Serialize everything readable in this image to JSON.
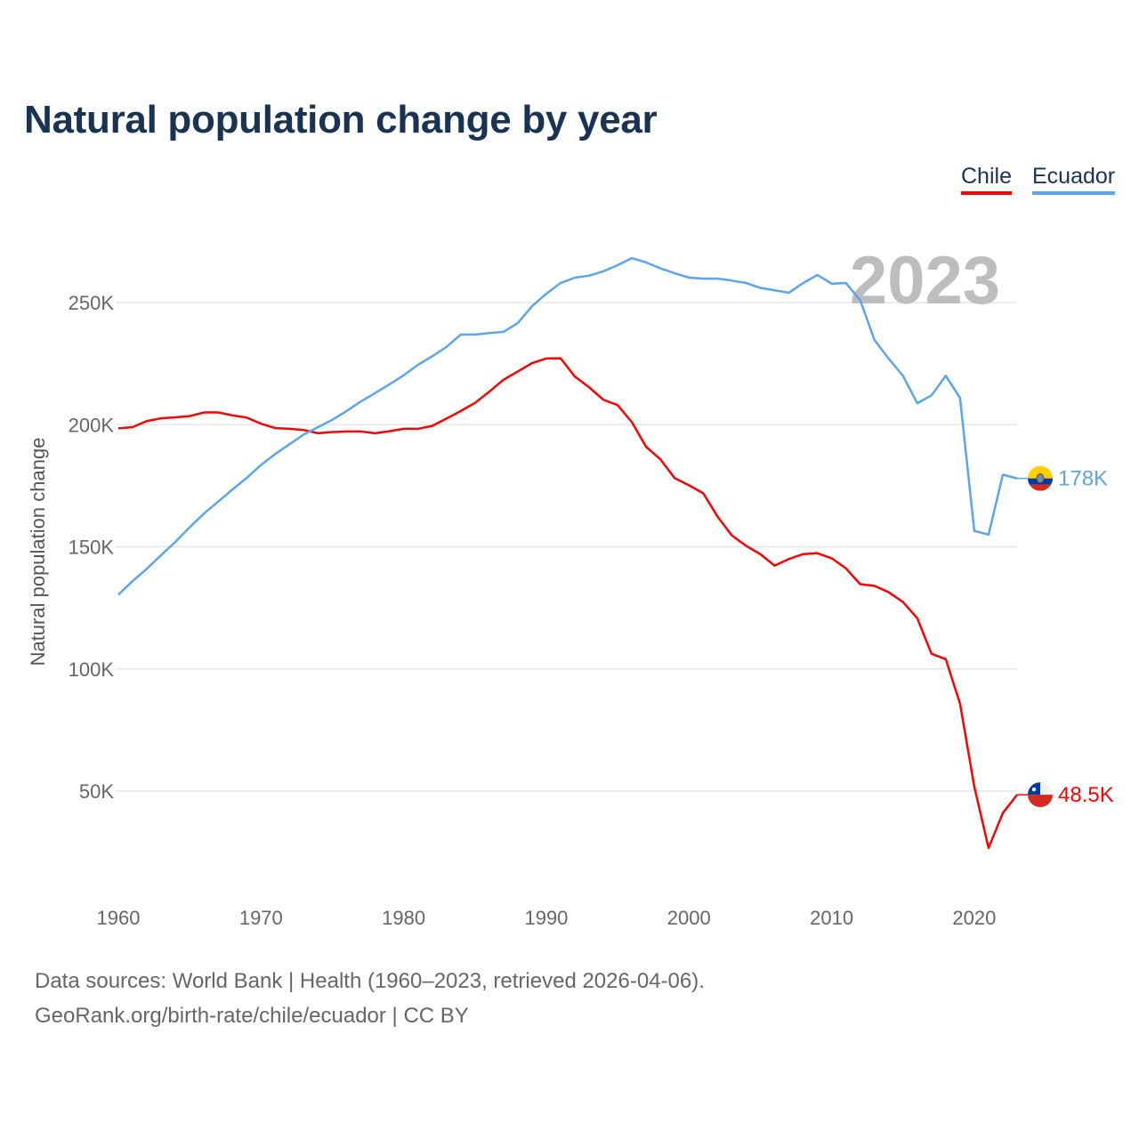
{
  "title": "Natural population change by year",
  "footer": {
    "line1": "Data sources: World Bank | Health (1960–2023, retrieved 2026-04-06).",
    "line2": "GeoRank.org/birth-rate/chile/ecuador | CC BY"
  },
  "chart_data": {
    "type": "line",
    "title": "Natural population change by year",
    "xlabel": "",
    "ylabel": "Natural population change",
    "year_watermark": "2023",
    "xlim": [
      1960,
      2023
    ],
    "ylim": [
      20000,
      270000
    ],
    "x_ticks": [
      1960,
      1970,
      1980,
      1990,
      2000,
      2010,
      2020
    ],
    "x_tick_labels": [
      "1960",
      "1970",
      "1980",
      "1990",
      "2000",
      "2010",
      "2020"
    ],
    "y_ticks": [
      50000,
      100000,
      150000,
      200000,
      250000
    ],
    "y_tick_labels": [
      "50K",
      "100K",
      "150K",
      "200K",
      "250K"
    ],
    "grid": true,
    "legend_position": "top-right",
    "x_start": 1960,
    "series": [
      {
        "name": "Chile",
        "color": "#ff0000",
        "end_label": "48.5K",
        "flag": "chile-flag",
        "values": [
          198.5,
          199,
          201.5,
          202.6,
          203,
          203.5,
          205,
          205,
          203.8,
          202.9,
          200.4,
          198.6,
          198.3,
          197.8,
          196.5,
          197,
          197.2,
          197.2,
          196.5,
          197.3,
          198.3,
          198.3,
          199.5,
          202.5,
          205.6,
          208.9,
          213.5,
          218.4,
          221.8,
          225.2,
          227.1,
          227.2,
          219.7,
          215.3,
          210.2,
          208,
          201,
          190.9,
          185.8,
          178.1,
          175.2,
          171.9,
          162.4,
          154.7,
          150.4,
          147,
          142.3,
          145,
          147,
          147.4,
          145.3,
          141.2,
          134.7,
          134,
          131.4,
          127.4,
          120.8,
          106.2,
          104,
          85.8,
          51.8,
          26.7,
          41,
          48.5
        ]
      },
      {
        "name": "Ecuador",
        "color": "#5aa5ec",
        "end_label": "178K",
        "flag": "ecuador-flag",
        "values": [
          130.4,
          136,
          141,
          146.6,
          152,
          158,
          163.6,
          168.5,
          173.5,
          178.2,
          183.5,
          188,
          192,
          196,
          199,
          202,
          205.6,
          209.5,
          212.9,
          216.5,
          220.2,
          224.5,
          228,
          231.8,
          236.9,
          236.9,
          237.5,
          238,
          241.6,
          248.5,
          253.6,
          258,
          260.2,
          261,
          262.8,
          265.3,
          268.2,
          266.4,
          264,
          262,
          260.2,
          259.8,
          259.8,
          259,
          258,
          256,
          255,
          254,
          258,
          261.3,
          257.7,
          258,
          251,
          234.7,
          227,
          220,
          208.8,
          212,
          220,
          211,
          156.5,
          155,
          179.5,
          178
        ]
      }
    ],
    "value_unit": "thousands"
  }
}
